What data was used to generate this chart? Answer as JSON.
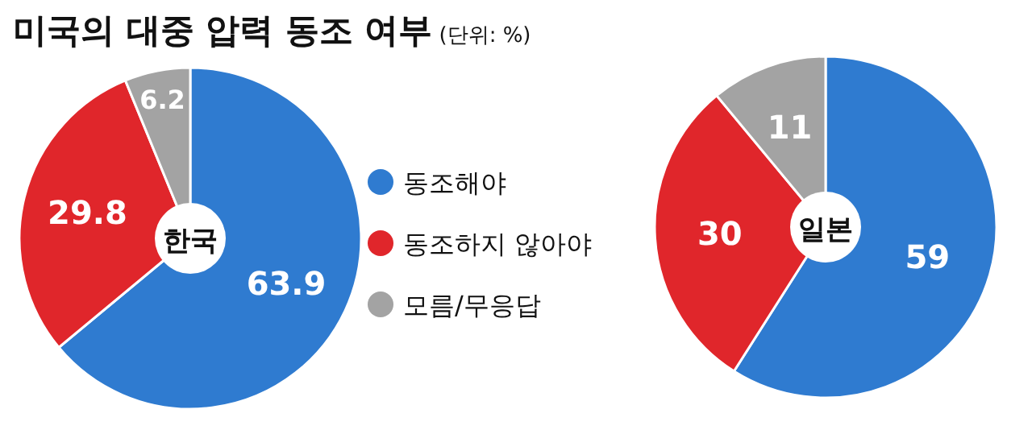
{
  "chart_data": [
    {
      "type": "donut",
      "title": "미국의 대중 압력 동조 여부",
      "subtitle": "(단위: %)",
      "categories": [
        "동조해야",
        "동조하지 않아야",
        "모름/무응답"
      ],
      "values": [
        63.9,
        29.8,
        6.2
      ],
      "colors": [
        "#2f7bd0",
        "#e0262b",
        "#a3a3a3"
      ],
      "data_labels": true,
      "legend": "right",
      "annotations": [
        "한국"
      ]
    },
    {
      "type": "donut",
      "categories": [
        null,
        null,
        null
      ],
      "values": [
        59,
        30,
        11
      ],
      "colors": [
        "#2f7bd0",
        "#e0262b",
        "#a3a3a3"
      ],
      "data_labels": true,
      "annotations": [
        "일본"
      ]
    }
  ]
}
